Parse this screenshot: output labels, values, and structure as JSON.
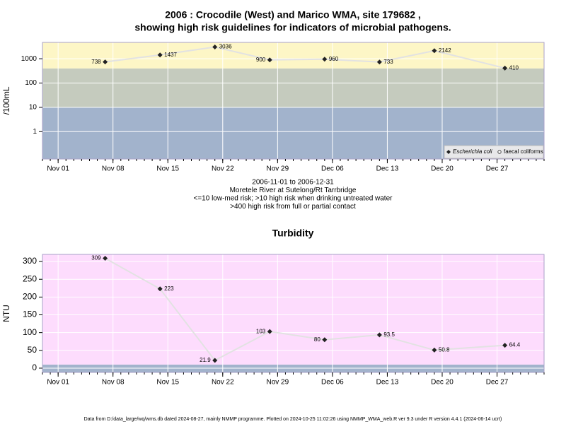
{
  "chart_data": [
    {
      "type": "line",
      "title": [
        "2006 : Crocodile (West) and Marico WMA, site 179682 ,",
        "showing high risk guidelines for indicators of microbial pathogens."
      ],
      "notes": [
        "2006-11-01 to 2006-12-31",
        "Moretele River at Sutelong/Rt Tarrbridge",
        "<=10 low-med risk; >10 high risk when drinking untreated water",
        ">400 high risk from full or partial contact"
      ],
      "y_label": "/100mL",
      "log_y": true,
      "x": [
        "Nov 07",
        "Nov 14",
        "Nov 21",
        "Nov 28",
        "Dec 05",
        "Dec 12",
        "Dec 19",
        "Dec 28"
      ],
      "series": [
        {
          "name": "Escherichia coli",
          "color": "#222222",
          "values": [
            738,
            1437,
            3036,
            900,
            960,
            733,
            2142,
            410
          ]
        },
        {
          "name": "faecal coliforms",
          "color": "#ffffff",
          "values": [
            null,
            null,
            null,
            null,
            null,
            null,
            null,
            null
          ]
        }
      ],
      "bands": [
        {
          "to": 10,
          "color": "#a2b3cc"
        },
        {
          "to": 400,
          "color": "#c5cbbe"
        },
        {
          "to": null,
          "color": "#fdf6c6"
        }
      ],
      "xlim": [
        "Oct 30",
        "Jan 02"
      ],
      "xticks": [
        "Nov 01",
        "Nov 08",
        "Nov 15",
        "Nov 22",
        "Nov 29",
        "Dec 06",
        "Dec 13",
        "Dec 20",
        "Dec 27"
      ],
      "ylim": [
        0.075,
        4700
      ],
      "yticks": [
        1,
        10,
        100,
        1000
      ],
      "grid": true,
      "legend": "bottom-right"
    },
    {
      "type": "line",
      "title": [
        "Turbidity"
      ],
      "y_label": "NTU",
      "log_y": false,
      "x": [
        "Nov 07",
        "Nov 14",
        "Nov 21",
        "Nov 28",
        "Dec 05",
        "Dec 12",
        "Dec 19",
        "Dec 28"
      ],
      "series": [
        {
          "name": "Turbidity",
          "color": "#222222",
          "values": [
            309,
            223,
            21.9,
            103,
            80,
            93.5,
            50.8,
            64.4
          ]
        }
      ],
      "bands": [
        {
          "to": 10,
          "color": "#a2b3cc"
        },
        {
          "to": null,
          "color": "#fddcfd"
        }
      ],
      "xlim": [
        "Oct 30",
        "Jan 02"
      ],
      "xticks": [
        "Nov 01",
        "Nov 08",
        "Nov 15",
        "Nov 22",
        "Nov 29",
        "Dec 06",
        "Dec 13",
        "Dec 20",
        "Dec 27"
      ],
      "ylim": [
        -12,
        320
      ],
      "yticks": [
        0,
        50,
        100,
        150,
        200,
        250,
        300
      ],
      "grid": true
    }
  ],
  "footnote": "Data from D:/data_large/wq/wms.db dated 2024-08-27, mainly NMMP programme. Plotted on 2024-10-25 11:02:26 using NMMP_WMA_web.R ver 9.3 under R version 4.4.1 (2024-06-14 ucrt)"
}
